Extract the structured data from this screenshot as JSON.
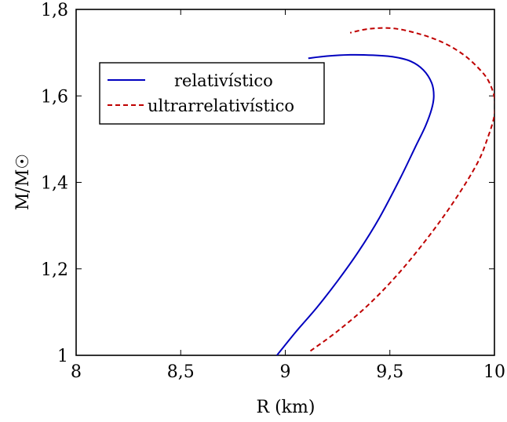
{
  "chart_data": {
    "type": "line",
    "title": "",
    "xlabel": "R (km)",
    "ylabel": "M/M☉",
    "xlim": [
      8,
      10
    ],
    "ylim": [
      1,
      1.8
    ],
    "x_ticks": [
      8,
      8.5,
      9,
      9.5,
      10
    ],
    "x_tick_labels": [
      "8",
      "8,5",
      "9",
      "9,5",
      "10"
    ],
    "y_ticks": [
      1,
      1.2,
      1.4,
      1.6,
      1.8
    ],
    "y_tick_labels": [
      "1",
      "1,2",
      "1,4",
      "1,6",
      "1,8"
    ],
    "grid": false,
    "legend_position": "upper-left",
    "series": [
      {
        "name": "relativístico",
        "color": "#0000bf",
        "style": "solid",
        "x": [
          8.96,
          9.05,
          9.15,
          9.25,
          9.35,
          9.45,
          9.55,
          9.62,
          9.67,
          9.7,
          9.71,
          9.7,
          9.66,
          9.6,
          9.52,
          9.42,
          9.31,
          9.2,
          9.11
        ],
        "y": [
          1.0,
          1.054,
          1.11,
          1.172,
          1.24,
          1.318,
          1.41,
          1.48,
          1.53,
          1.57,
          1.6,
          1.63,
          1.66,
          1.68,
          1.69,
          1.694,
          1.695,
          1.692,
          1.687
        ]
      },
      {
        "name": "ultrarrelativístico",
        "color": "#bf0000",
        "style": "dashed",
        "x": [
          9.12,
          9.25,
          9.4,
          9.55,
          9.7,
          9.82,
          9.92,
          9.97,
          10.0,
          10.0,
          9.97,
          9.92,
          9.85,
          9.76,
          9.65,
          9.52,
          9.4,
          9.31
        ],
        "y": [
          1.01,
          1.056,
          1.118,
          1.194,
          1.284,
          1.366,
          1.446,
          1.506,
          1.556,
          1.596,
          1.636,
          1.666,
          1.696,
          1.722,
          1.742,
          1.756,
          1.755,
          1.746
        ]
      }
    ]
  }
}
